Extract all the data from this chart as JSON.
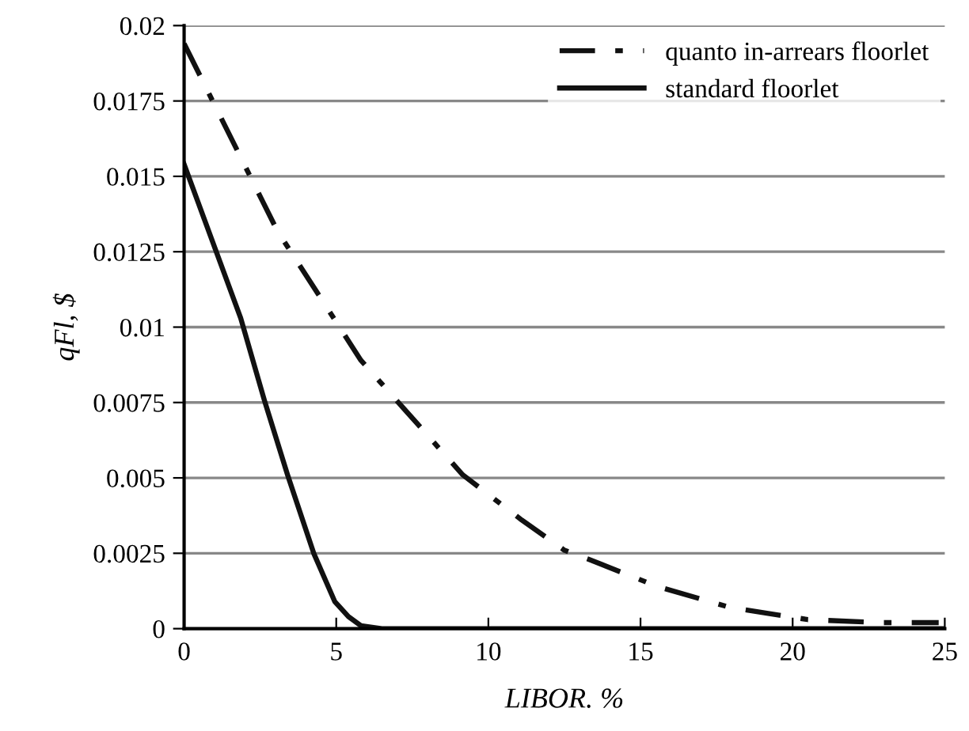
{
  "chart_data": {
    "type": "line",
    "xlabel": "LIBOR. %",
    "ylabel": "qFl, $",
    "xlim": [
      0,
      25
    ],
    "xticks": [
      0,
      5,
      10,
      15,
      20,
      25
    ],
    "ylim": [
      0,
      0.02
    ],
    "yticks": [
      0,
      0.0025,
      0.005,
      0.0075,
      0.01,
      0.0125,
      0.015,
      0.0175,
      0.02
    ],
    "grid": "y",
    "legend": "top right",
    "marker": "none",
    "series": [
      {
        "name": "quanto in-arrears floorlet",
        "color": "#111111",
        "line_style": "dashdot",
        "x": [
          0,
          3.06,
          5.81,
          9.16,
          11.1,
          12.5,
          13.3,
          15.55,
          17.96,
          20.5,
          22.9,
          24.8
        ],
        "values": [
          0.0194,
          0.0132,
          0.0089,
          0.0051,
          0.0036,
          0.0026,
          0.0023,
          0.0014,
          0.0007,
          0.0003,
          0.0002,
          0.0002
        ]
      },
      {
        "name": "standard floorlet",
        "color": "#111111",
        "line_style": "solid",
        "x": [
          0,
          1.86,
          2.63,
          3.4,
          4.26,
          4.95,
          5.4,
          5.81,
          6.5,
          25
        ],
        "values": [
          0.0154,
          0.0103,
          0.0076,
          0.0051,
          0.0025,
          0.0009,
          0.0004,
          0.0001,
          0,
          0
        ]
      }
    ]
  }
}
